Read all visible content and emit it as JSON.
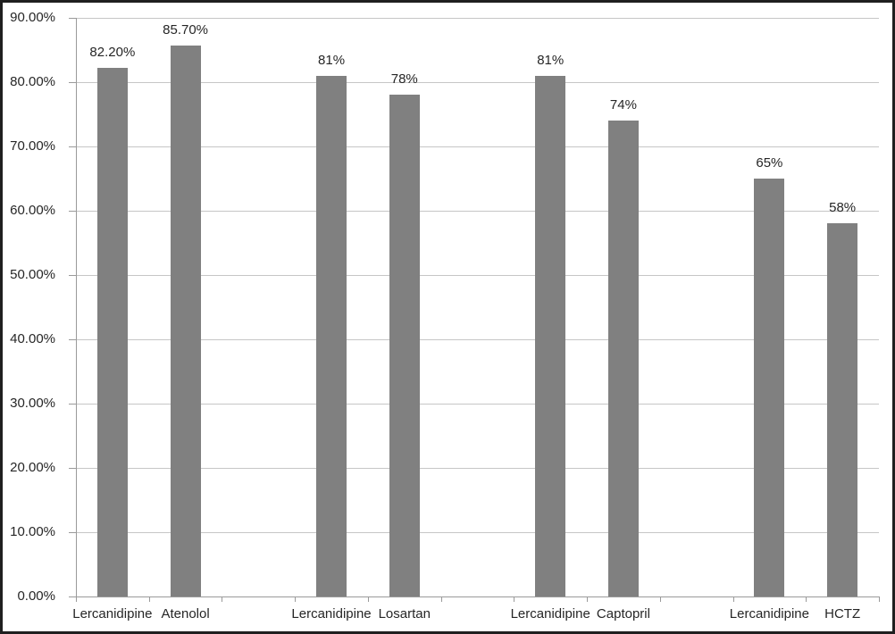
{
  "chart_data": {
    "type": "bar",
    "title": "",
    "xlabel": "",
    "ylabel": "",
    "ylim": [
      0,
      90
    ],
    "grid": true,
    "legend": "none",
    "bar_color": "#808080",
    "gridline_color": "#c6c6c6",
    "axis_color": "#9a9a9a",
    "text_color": "#262626",
    "frame_color": "#1f1f1f",
    "yticks": [
      {
        "value": 0,
        "label": "0.00%"
      },
      {
        "value": 10,
        "label": "10.00%"
      },
      {
        "value": 20,
        "label": "20.00%"
      },
      {
        "value": 30,
        "label": "30.00%"
      },
      {
        "value": 40,
        "label": "40.00%"
      },
      {
        "value": 50,
        "label": "50.00%"
      },
      {
        "value": 60,
        "label": "60.00%"
      },
      {
        "value": 70,
        "label": "70.00%"
      },
      {
        "value": 80,
        "label": "80.00%"
      },
      {
        "value": 90,
        "label": "90.00%"
      }
    ],
    "slots": [
      {
        "label": "Lercanidipine",
        "value": 82.2,
        "display": "82.20%"
      },
      {
        "label": "Atenolol",
        "value": 85.7,
        "display": "85.70%"
      },
      null,
      {
        "label": "Lercanidipine",
        "value": 81,
        "display": "81%"
      },
      {
        "label": "Losartan",
        "value": 78,
        "display": "78%"
      },
      null,
      {
        "label": "Lercanidipine",
        "value": 81,
        "display": "81%"
      },
      {
        "label": "Captopril",
        "value": 74,
        "display": "74%"
      },
      null,
      {
        "label": "Lercanidipine",
        "value": 65,
        "display": "65%"
      },
      {
        "label": "HCTZ",
        "value": 58,
        "display": "58%"
      }
    ],
    "groups": [
      {
        "comparison": [
          "Lercanidipine",
          "Atenolol"
        ],
        "values": [
          82.2,
          85.7
        ]
      },
      {
        "comparison": [
          "Lercanidipine",
          "Losartan"
        ],
        "values": [
          81,
          78
        ]
      },
      {
        "comparison": [
          "Lercanidipine",
          "Captopril"
        ],
        "values": [
          81,
          74
        ]
      },
      {
        "comparison": [
          "Lercanidipine",
          "HCTZ"
        ],
        "values": [
          65,
          58
        ]
      }
    ]
  }
}
